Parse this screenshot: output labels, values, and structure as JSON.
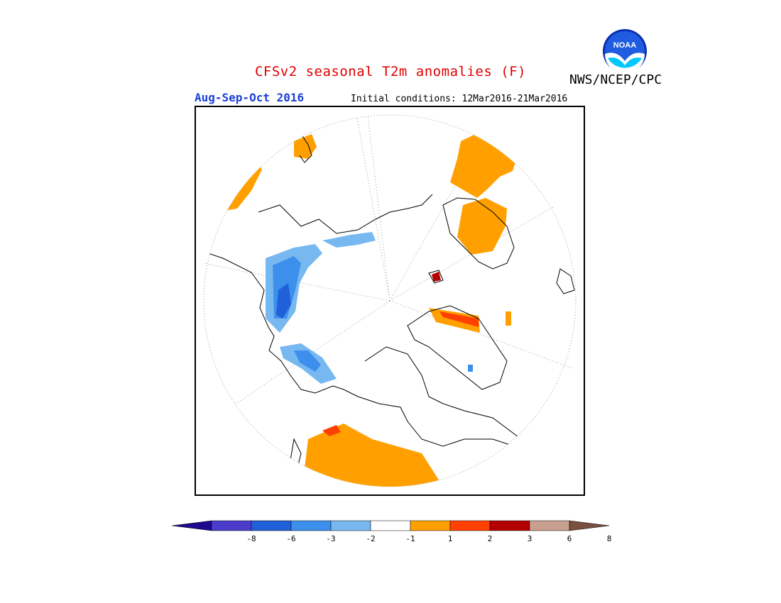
{
  "title": "CFSv2 seasonal T2m anomalies (F)",
  "agency": "NWS/NCEP/CPC",
  "logo_text": "NOAA",
  "season": "Aug-Sep-Oct 2016",
  "initial_conditions": "Initial conditions: 12Mar2016-21Mar2016",
  "colorbar": {
    "colors": [
      "#1e0a8c",
      "#4b3ccc",
      "#2060d8",
      "#3c90ec",
      "#78b8f0",
      "#ffffff",
      "#ffa000",
      "#ff4000",
      "#b40000",
      "#c8a090",
      "#785040"
    ],
    "labels": [
      "-8",
      "-6",
      "-3",
      "-2",
      "-1",
      "1",
      "2",
      "3",
      "6",
      "8"
    ]
  }
}
